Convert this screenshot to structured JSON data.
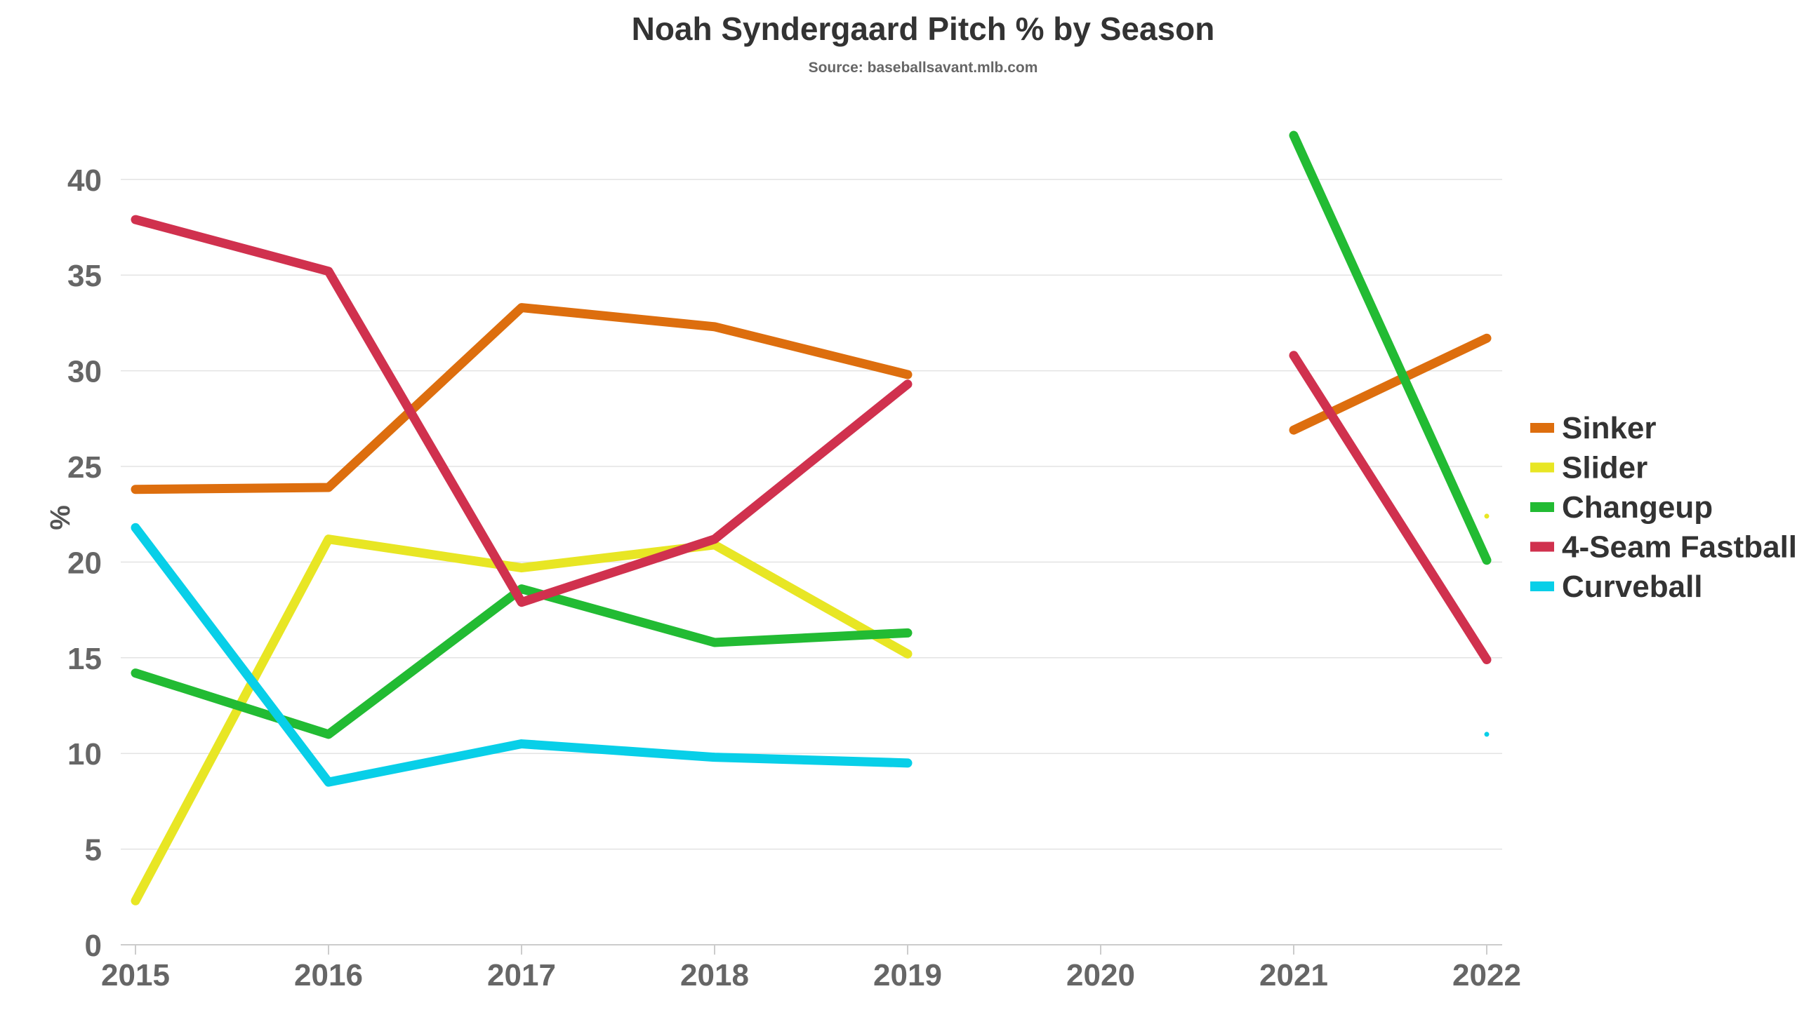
{
  "chart_data": {
    "type": "line",
    "title": "Noah Syndergaard Pitch % by Season",
    "subtitle": "Source: baseballsavant.mlb.com",
    "xlabel": "",
    "ylabel": "%",
    "categories": [
      "2015",
      "2016",
      "2017",
      "2018",
      "2019",
      "2020",
      "2021",
      "2022"
    ],
    "ylim": [
      0,
      42
    ],
    "yticks": [
      0,
      5,
      10,
      15,
      20,
      25,
      30,
      35,
      40
    ],
    "grid": true,
    "legend_position": "right",
    "series": [
      {
        "name": "Sinker",
        "color": "#dd6e0e",
        "values": [
          23.8,
          23.9,
          33.3,
          32.3,
          29.8,
          null,
          26.9,
          31.7
        ]
      },
      {
        "name": "Slider",
        "color": "#e8e624",
        "values": [
          2.3,
          21.2,
          19.7,
          20.9,
          15.2,
          null,
          null,
          22.4
        ]
      },
      {
        "name": "Changeup",
        "color": "#22bb33",
        "values": [
          14.2,
          11.0,
          18.6,
          15.8,
          16.3,
          null,
          42.3,
          20.1
        ]
      },
      {
        "name": "4-Seam Fastball",
        "color": "#d0314e",
        "values": [
          37.9,
          35.2,
          17.9,
          21.2,
          29.3,
          null,
          30.8,
          14.9
        ]
      },
      {
        "name": "Curveball",
        "color": "#08cfe8",
        "values": [
          21.8,
          8.5,
          10.5,
          9.8,
          9.5,
          null,
          null,
          11.0
        ]
      }
    ]
  }
}
